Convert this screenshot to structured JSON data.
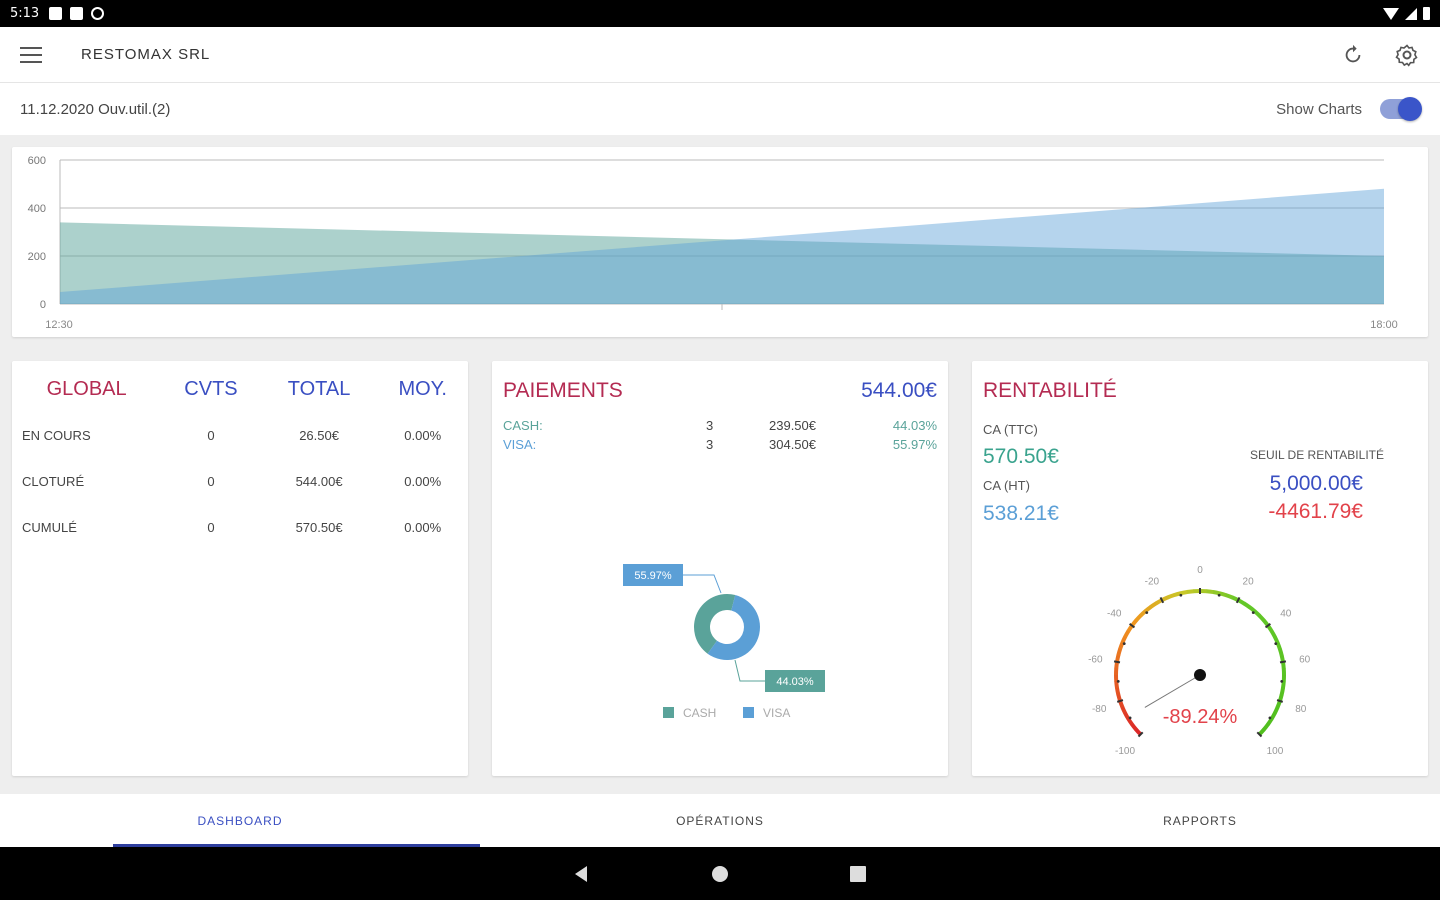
{
  "status_bar": {
    "time": "5:13"
  },
  "app": {
    "title": "RESTOMAX SRL"
  },
  "subheader": {
    "date": "11.12.2020 Ouv.util.(2)",
    "toggle_label": "Show Charts",
    "toggle_on": true
  },
  "colors": {
    "accent": "#3a55c9",
    "title_red": "#b42b52",
    "title_blue": "#3a4fc2",
    "cash": "#5aa39a",
    "visa": "#5b9fd6",
    "negative": "#e2424a",
    "positive": "#3aa38e"
  },
  "chart_data": {
    "type": "area",
    "x": [
      "12:30",
      "18:00"
    ],
    "series": [
      {
        "name": "CASH",
        "values": [
          340,
          200
        ]
      },
      {
        "name": "VISA",
        "values": [
          50,
          480
        ]
      }
    ],
    "y_ticks": [
      "600",
      "400",
      "200",
      "0"
    ],
    "ylim": [
      0,
      600
    ],
    "grid": true
  },
  "global": {
    "headers": [
      "GLOBAL",
      "CVTS",
      "TOTAL",
      "MOY."
    ],
    "rows": [
      {
        "label": "EN COURS",
        "cvts": "0",
        "total": "26.50€",
        "moy": "0.00%"
      },
      {
        "label": "CLOTURÉ",
        "cvts": "0",
        "total": "544.00€",
        "moy": "0.00%"
      },
      {
        "label": "CUMULÉ",
        "cvts": "0",
        "total": "570.50€",
        "moy": "0.00%"
      }
    ]
  },
  "paiements": {
    "title": "PAIEMENTS",
    "total": "544.00€",
    "rows": [
      {
        "name": "CASH:",
        "count": "3",
        "amount": "239.50€",
        "pct": "44.03%"
      },
      {
        "name": "VISA:",
        "count": "3",
        "amount": "304.50€",
        "pct": "55.97%"
      }
    ],
    "donut": {
      "slices": [
        {
          "name": "CASH",
          "value": 44.03,
          "label": "44.03%"
        },
        {
          "name": "VISA",
          "value": 55.97,
          "label": "55.97%"
        }
      ],
      "legend": [
        "CASH",
        "VISA"
      ]
    }
  },
  "rentabilite": {
    "title": "RENTABILITÉ",
    "ca_ttc_label": "CA (TTC)",
    "ca_ttc": "570.50€",
    "ca_ht_label": "CA (HT)",
    "ca_ht": "538.21€",
    "seuil_label": "SEUIL DE RENTABILITÉ",
    "seuil": "5,000.00€",
    "diff": "-4461.79€",
    "gauge": {
      "value": -89.24,
      "label": "-89.24%",
      "ticks": [
        "-100",
        "-80",
        "-60",
        "-40",
        "-20",
        "0",
        "20",
        "40",
        "60",
        "80",
        "100"
      ],
      "min": -100,
      "max": 100
    }
  },
  "tabs": [
    {
      "label": "DASHBOARD",
      "active": true
    },
    {
      "label": "OPÉRATIONS",
      "active": false
    },
    {
      "label": "RAPPORTS",
      "active": false
    }
  ]
}
